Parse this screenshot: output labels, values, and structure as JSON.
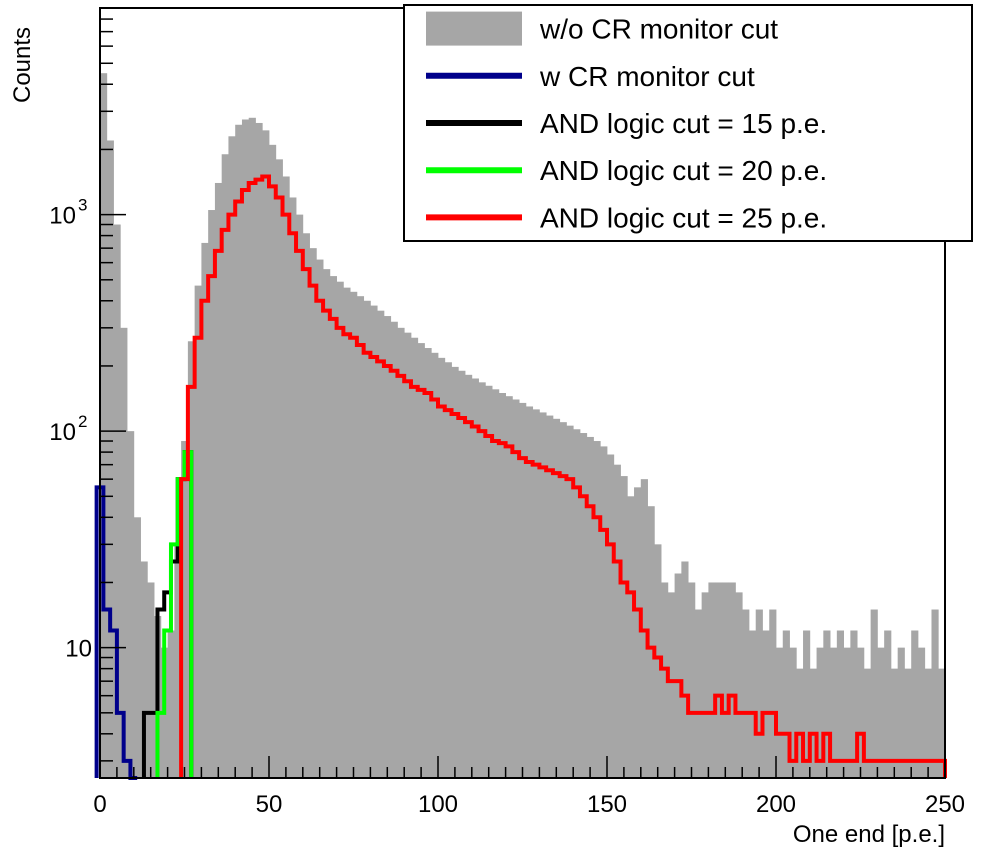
{
  "chart_data": {
    "type": "histogram",
    "ylabel": "Counts",
    "xlabel": "One end [p.e.]",
    "xlim": [
      0,
      250
    ],
    "ylim": [
      2.5,
      9000
    ],
    "yscale": "log",
    "x_ticks": [
      {
        "value": 0,
        "label": "0"
      },
      {
        "value": 50,
        "label": "50"
      },
      {
        "value": 100,
        "label": "100"
      },
      {
        "value": 150,
        "label": "150"
      },
      {
        "value": 200,
        "label": "200"
      },
      {
        "value": 250,
        "label": "250"
      }
    ],
    "y_ticks": [
      {
        "value": 10,
        "label": "10"
      },
      {
        "value": 100,
        "label": "10",
        "exp": "2"
      },
      {
        "value": 1000,
        "label": "10",
        "exp": "3"
      }
    ],
    "legend_position": "top-right",
    "series": [
      {
        "name": "w/o CR monitor cut",
        "style": "filled",
        "color": "#a6a6a6",
        "x": [
          1,
          3,
          5,
          7,
          9,
          11,
          13,
          15,
          17,
          19,
          21,
          23,
          25,
          27,
          29,
          31,
          33,
          35,
          37,
          39,
          41,
          43,
          45,
          47,
          49,
          51,
          53,
          55,
          57,
          59,
          61,
          63,
          65,
          67,
          69,
          71,
          73,
          75,
          77,
          79,
          81,
          83,
          85,
          87,
          89,
          91,
          93,
          95,
          97,
          99,
          101,
          103,
          105,
          107,
          109,
          111,
          113,
          115,
          117,
          119,
          121,
          123,
          125,
          127,
          129,
          131,
          133,
          135,
          137,
          139,
          141,
          143,
          145,
          147,
          149,
          151,
          153,
          155,
          157,
          159,
          161,
          163,
          165,
          167,
          169,
          171,
          173,
          175,
          177,
          179,
          181,
          183,
          185,
          187,
          189,
          191,
          193,
          195,
          197,
          199,
          201,
          203,
          205,
          207,
          209,
          211,
          213,
          215,
          217,
          219,
          221,
          223,
          225,
          227,
          229,
          231,
          233,
          235,
          237,
          239,
          241,
          243,
          245,
          247,
          249
        ],
        "values": [
          4500,
          2200,
          900,
          300,
          100,
          40,
          25,
          20,
          14,
          10,
          12,
          30,
          90,
          260,
          470,
          740,
          1050,
          1400,
          1900,
          2300,
          2600,
          2750,
          2800,
          2650,
          2450,
          2100,
          1800,
          1500,
          1200,
          1000,
          820,
          700,
          620,
          560,
          520,
          490,
          460,
          440,
          420,
          400,
          380,
          360,
          340,
          320,
          300,
          285,
          270,
          255,
          242,
          230,
          218,
          208,
          198,
          190,
          182,
          175,
          168,
          162,
          156,
          150,
          145,
          140,
          135,
          130,
          126,
          122,
          118,
          114,
          110,
          106,
          102,
          98,
          94,
          90,
          85,
          78,
          70,
          62,
          50,
          55,
          60,
          45,
          30,
          20,
          18,
          22,
          25,
          20,
          15,
          18,
          20,
          20,
          20,
          20,
          18,
          15,
          12,
          15,
          12,
          15,
          10,
          12,
          10,
          8,
          12,
          8,
          10,
          12,
          10,
          12,
          10,
          12,
          10,
          8,
          15,
          10,
          12,
          8,
          10,
          8,
          12,
          10,
          8,
          15,
          8
        ]
      },
      {
        "name": "w CR monitor cut",
        "style": "step",
        "color": "#00008b",
        "x": [
          0,
          2,
          4,
          6,
          8,
          10
        ],
        "values": [
          55,
          15,
          12,
          5,
          3,
          2
        ]
      },
      {
        "name": "AND logic cut = 15 p.e.",
        "style": "step",
        "color": "#000000",
        "x": [
          14,
          16,
          18,
          20,
          22,
          24,
          26
        ],
        "values": [
          5,
          5,
          15,
          18,
          25,
          60,
          80
        ]
      },
      {
        "name": "AND logic cut = 20 p.e.",
        "style": "step",
        "color": "#00ff00",
        "x": [
          18,
          20,
          22,
          24,
          26
        ],
        "values": [
          5,
          12,
          30,
          60,
          80
        ]
      },
      {
        "name": "AND logic cut = 25 p.e.",
        "style": "step",
        "color": "#ff0000",
        "x": [
          25,
          27,
          29,
          31,
          33,
          35,
          37,
          39,
          41,
          43,
          45,
          47,
          49,
          51,
          53,
          55,
          57,
          59,
          61,
          63,
          65,
          67,
          69,
          71,
          73,
          75,
          77,
          79,
          81,
          83,
          85,
          87,
          89,
          91,
          93,
          95,
          97,
          99,
          101,
          103,
          105,
          107,
          109,
          111,
          113,
          115,
          117,
          119,
          121,
          123,
          125,
          127,
          129,
          131,
          133,
          135,
          137,
          139,
          141,
          143,
          145,
          147,
          149,
          151,
          153,
          155,
          157,
          159,
          161,
          163,
          165,
          167,
          169,
          171,
          173,
          175,
          177,
          179,
          181,
          183,
          185,
          187,
          189,
          191,
          193,
          195,
          197,
          199,
          201,
          203,
          205,
          207,
          209,
          211,
          213,
          215,
          217,
          219,
          221,
          223,
          225,
          227,
          229,
          231,
          233,
          235,
          237,
          239,
          241,
          243,
          245,
          247,
          249
        ],
        "values": [
          60,
          160,
          270,
          400,
          520,
          680,
          850,
          1000,
          1150,
          1300,
          1400,
          1450,
          1500,
          1350,
          1200,
          1000,
          820,
          680,
          560,
          470,
          400,
          360,
          330,
          300,
          280,
          270,
          250,
          230,
          220,
          210,
          200,
          190,
          180,
          170,
          160,
          155,
          150,
          140,
          130,
          125,
          120,
          115,
          110,
          105,
          100,
          95,
          90,
          88,
          85,
          80,
          75,
          72,
          70,
          68,
          66,
          64,
          62,
          60,
          55,
          50,
          45,
          40,
          35,
          30,
          25,
          20,
          18,
          15,
          12,
          10,
          9,
          8,
          7,
          7,
          6,
          5,
          5,
          5,
          5,
          6,
          5,
          6,
          5,
          5,
          5,
          4,
          5,
          5,
          4,
          4,
          3,
          4,
          3,
          4,
          3,
          4,
          3,
          3,
          3,
          3,
          4,
          3,
          3,
          3,
          3,
          3,
          3,
          3,
          3,
          3,
          3,
          3,
          3
        ]
      }
    ]
  }
}
